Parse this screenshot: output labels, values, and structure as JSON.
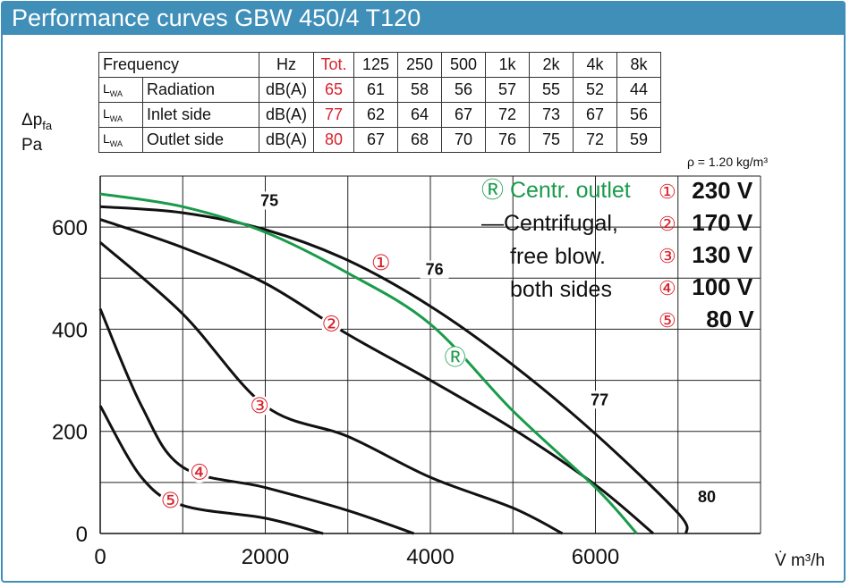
{
  "title": "Performance curves GBW 450/4 T120",
  "table": {
    "header": [
      "Frequency",
      "Hz",
      "Tot.",
      "125",
      "250",
      "500",
      "1k",
      "2k",
      "4k",
      "8k"
    ],
    "rows": [
      {
        "sym": "L",
        "sub": "WA",
        "label": "Radiation",
        "unit": "dB(A)",
        "tot": "65",
        "values": [
          "61",
          "58",
          "56",
          "57",
          "55",
          "52",
          "44"
        ]
      },
      {
        "sym": "L",
        "sub": "WA",
        "label": "Inlet side",
        "unit": "dB(A)",
        "tot": "77",
        "values": [
          "62",
          "64",
          "67",
          "72",
          "73",
          "67",
          "56"
        ]
      },
      {
        "sym": "L",
        "sub": "WA",
        "label": "Outlet side",
        "unit": "dB(A)",
        "tot": "80",
        "values": [
          "67",
          "68",
          "70",
          "76",
          "75",
          "72",
          "59"
        ]
      }
    ]
  },
  "density": "ρ = 1.20 kg/m³",
  "y_label": {
    "main": "Δp",
    "sub": "fa",
    "unit": "Pa"
  },
  "x_label": "V̇  m³/h",
  "legend": {
    "green_label": "Ⓡ Centr. outlet",
    "black_label_lines": [
      "Centrifugal,",
      "free blow.",
      "both sides"
    ]
  },
  "voltages": [
    {
      "num": "①",
      "label": "230 V"
    },
    {
      "num": "②",
      "label": "170 V"
    },
    {
      "num": "③",
      "label": "130 V"
    },
    {
      "num": "④",
      "label": "100 V"
    },
    {
      "num": "⑤",
      "label": "80 V"
    }
  ],
  "colors": {
    "frame": "#3f8fb9",
    "green": "#1a9b4a",
    "red": "#d9232d",
    "black": "#111111"
  },
  "chart_data": {
    "type": "line",
    "xlabel": "V̇ m³/h",
    "ylabel": "Δpfa Pa",
    "xlim": [
      0,
      8000
    ],
    "ylim": [
      0,
      700
    ],
    "x_ticks": [
      0,
      2000,
      4000,
      6000
    ],
    "y_ticks": [
      0,
      200,
      400,
      600
    ],
    "grid": true,
    "series": [
      {
        "name": "①",
        "color": "#111111",
        "label_at": [
          3400,
          530
        ],
        "points": [
          [
            0,
            640
          ],
          [
            1000,
            628
          ],
          [
            2000,
            595
          ],
          [
            3000,
            535
          ],
          [
            4000,
            445
          ],
          [
            5000,
            330
          ],
          [
            6000,
            195
          ],
          [
            7000,
            40
          ],
          [
            7100,
            0
          ]
        ]
      },
      {
        "name": "②",
        "color": "#111111",
        "label_at": [
          2800,
          410
        ],
        "points": [
          [
            0,
            615
          ],
          [
            1000,
            560
          ],
          [
            2000,
            490
          ],
          [
            3000,
            390
          ],
          [
            4000,
            300
          ],
          [
            5000,
            205
          ],
          [
            6000,
            95
          ],
          [
            6700,
            0
          ]
        ]
      },
      {
        "name": "③",
        "color": "#111111",
        "label_at": [
          1930,
          250
        ],
        "points": [
          [
            0,
            570
          ],
          [
            1000,
            430
          ],
          [
            2000,
            250
          ],
          [
            3000,
            190
          ],
          [
            4000,
            110
          ],
          [
            5000,
            50
          ],
          [
            5600,
            0
          ]
        ]
      },
      {
        "name": "④",
        "color": "#111111",
        "label_at": [
          1200,
          120
        ],
        "points": [
          [
            0,
            440
          ],
          [
            500,
            250
          ],
          [
            1000,
            130
          ],
          [
            2000,
            90
          ],
          [
            3000,
            45
          ],
          [
            3800,
            0
          ]
        ]
      },
      {
        "name": "⑤",
        "color": "#111111",
        "label_at": [
          850,
          65
        ],
        "points": [
          [
            0,
            250
          ],
          [
            500,
            110
          ],
          [
            1000,
            55
          ],
          [
            2000,
            30
          ],
          [
            2700,
            0
          ]
        ]
      },
      {
        "name": "Ⓡ",
        "color": "#1a9b4a",
        "label_at": [
          4300,
          345
        ],
        "points": [
          [
            0,
            665
          ],
          [
            1000,
            640
          ],
          [
            2000,
            590
          ],
          [
            3000,
            510
          ],
          [
            4000,
            410
          ],
          [
            5000,
            240
          ],
          [
            6000,
            90
          ],
          [
            6500,
            0
          ]
        ]
      }
    ],
    "iso_lines": [
      {
        "label": "75",
        "at": [
          2050,
          645
        ]
      },
      {
        "label": "76",
        "at": [
          4050,
          510
        ]
      },
      {
        "label": "77",
        "at": [
          6050,
          255
        ]
      },
      {
        "label": "80",
        "at": [
          7350,
          65
        ]
      }
    ]
  }
}
